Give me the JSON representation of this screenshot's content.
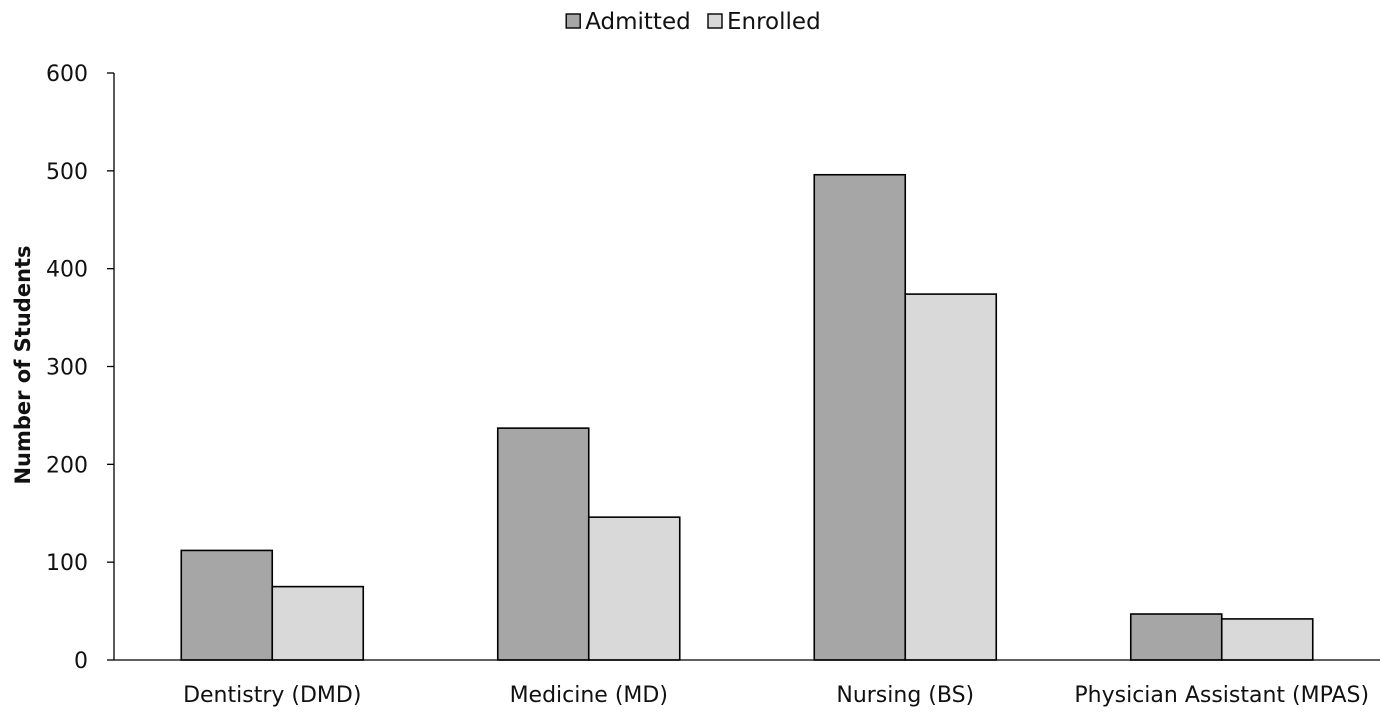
{
  "chart_data": {
    "type": "bar",
    "title": "",
    "xlabel": "",
    "ylabel": "Number of Students",
    "ylim": [
      0,
      600
    ],
    "yticks": [
      0,
      100,
      200,
      300,
      400,
      500,
      600
    ],
    "grid": false,
    "legend_position": "top-center",
    "categories": [
      "Dentistry (DMD)",
      "Medicine (MD)",
      "Nursing (BS)",
      "Physician Assistant (MPAS)"
    ],
    "series": [
      {
        "name": "Admitted",
        "color": "#a6a6a6",
        "values": [
          112,
          237,
          496,
          47
        ]
      },
      {
        "name": "Enrolled",
        "color": "#d9d9d9",
        "values": [
          75,
          146,
          374,
          42
        ]
      }
    ]
  }
}
